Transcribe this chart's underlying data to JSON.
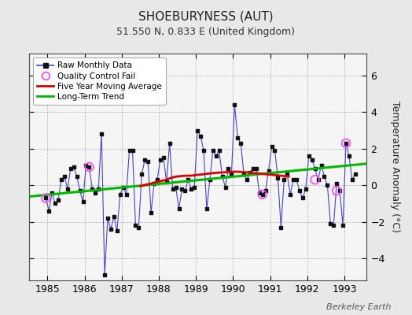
{
  "title": "SHOEBURYNESS (AUT)",
  "subtitle": "51.550 N, 0.833 E (United Kingdom)",
  "ylabel": "Temperature Anomaly (°C)",
  "footer": "Berkeley Earth",
  "bg_color": "#e8e8e8",
  "plot_bg_color": "#f5f5f5",
  "ylim": [
    -5.2,
    7.2
  ],
  "yticks": [
    -4,
    -2,
    0,
    2,
    4,
    6
  ],
  "xlim": [
    1984.5,
    1993.6
  ],
  "xticks": [
    1985,
    1986,
    1987,
    1988,
    1989,
    1990,
    1991,
    1992,
    1993
  ],
  "raw_x": [
    1984.958,
    1985.042,
    1985.125,
    1985.208,
    1985.292,
    1985.375,
    1985.458,
    1985.542,
    1985.625,
    1985.708,
    1985.792,
    1985.875,
    1985.958,
    1986.042,
    1986.125,
    1986.208,
    1986.292,
    1986.375,
    1986.458,
    1986.542,
    1986.625,
    1986.708,
    1986.792,
    1986.875,
    1986.958,
    1987.042,
    1987.125,
    1987.208,
    1987.292,
    1987.375,
    1987.458,
    1987.542,
    1987.625,
    1987.708,
    1987.792,
    1987.875,
    1987.958,
    1988.042,
    1988.125,
    1988.208,
    1988.292,
    1988.375,
    1988.458,
    1988.542,
    1988.625,
    1988.708,
    1988.792,
    1988.875,
    1988.958,
    1989.042,
    1989.125,
    1989.208,
    1989.292,
    1989.375,
    1989.458,
    1989.542,
    1989.625,
    1989.708,
    1989.792,
    1989.875,
    1989.958,
    1990.042,
    1990.125,
    1990.208,
    1990.292,
    1990.375,
    1990.458,
    1990.542,
    1990.625,
    1990.708,
    1990.792,
    1990.875,
    1990.958,
    1991.042,
    1991.125,
    1991.208,
    1991.292,
    1991.375,
    1991.458,
    1991.542,
    1991.625,
    1991.708,
    1991.792,
    1991.875,
    1991.958,
    1992.042,
    1992.125,
    1992.208,
    1992.292,
    1992.375,
    1992.458,
    1992.542,
    1992.625,
    1992.708,
    1992.792,
    1992.875,
    1992.958,
    1993.042,
    1993.125,
    1993.208,
    1993.292
  ],
  "raw_y": [
    -0.7,
    -1.4,
    -0.4,
    -1.0,
    -0.8,
    0.3,
    0.5,
    -0.2,
    0.9,
    1.0,
    0.5,
    -0.3,
    -0.9,
    1.1,
    1.0,
    -0.2,
    -0.4,
    -0.2,
    2.8,
    -4.9,
    -1.8,
    -2.4,
    -1.7,
    -2.5,
    -0.5,
    -0.1,
    -0.5,
    1.9,
    1.9,
    -2.2,
    -2.3,
    0.6,
    1.4,
    1.3,
    -1.5,
    0.1,
    0.3,
    1.4,
    1.5,
    0.2,
    2.3,
    -0.2,
    -0.1,
    -1.3,
    -0.2,
    -0.3,
    0.3,
    -0.2,
    -0.1,
    3.0,
    2.7,
    1.9,
    -1.3,
    0.3,
    1.9,
    1.6,
    1.9,
    0.5,
    -0.1,
    0.9,
    0.6,
    4.4,
    2.6,
    2.3,
    0.6,
    0.3,
    0.7,
    0.9,
    0.9,
    -0.4,
    -0.5,
    -0.3,
    0.8,
    2.1,
    1.9,
    0.4,
    -2.3,
    0.3,
    0.6,
    -0.5,
    0.3,
    0.3,
    -0.3,
    -0.7,
    -0.2,
    1.6,
    1.4,
    0.9,
    0.3,
    1.1,
    0.5,
    0.0,
    -2.1,
    -2.2,
    0.1,
    -0.3,
    -2.2,
    2.3,
    1.6,
    0.3,
    0.6
  ],
  "qc_fail_x": [
    1984.958,
    1986.125,
    1990.792,
    1992.208,
    1992.792,
    1993.042
  ],
  "qc_fail_y": [
    -0.7,
    1.0,
    -0.5,
    0.3,
    -0.3,
    2.3
  ],
  "ma_x": [
    1987.5,
    1987.6,
    1987.7,
    1987.8,
    1987.9,
    1988.0,
    1988.1,
    1988.2,
    1988.3,
    1988.4,
    1988.5,
    1988.6,
    1988.7,
    1988.8,
    1988.9,
    1989.0,
    1989.1,
    1989.2,
    1989.3,
    1989.4,
    1989.5,
    1989.6,
    1989.7,
    1989.8,
    1989.9,
    1990.0,
    1990.1,
    1990.2,
    1990.3,
    1990.4,
    1990.5,
    1990.6,
    1990.7,
    1990.8,
    1990.9,
    1991.0,
    1991.1,
    1991.2,
    1991.3,
    1991.4,
    1991.5
  ],
  "ma_y": [
    -0.05,
    0.0,
    0.05,
    0.1,
    0.15,
    0.2,
    0.25,
    0.3,
    0.38,
    0.44,
    0.48,
    0.5,
    0.52,
    0.52,
    0.53,
    0.56,
    0.58,
    0.6,
    0.63,
    0.65,
    0.67,
    0.69,
    0.7,
    0.71,
    0.72,
    0.74,
    0.74,
    0.73,
    0.72,
    0.7,
    0.68,
    0.66,
    0.64,
    0.62,
    0.6,
    0.58,
    0.56,
    0.54,
    0.52,
    0.5,
    0.48
  ],
  "trend_x": [
    1984.5,
    1993.6
  ],
  "trend_y": [
    -0.62,
    1.18
  ],
  "line_color": "#4444cc",
  "marker_color": "#111111",
  "qc_color": "#ff44ff",
  "ma_color": "#dd0000",
  "trend_color": "#00bb00",
  "grid_color": "#bbbbbb",
  "title_fontsize": 11,
  "subtitle_fontsize": 9,
  "tick_fontsize": 9,
  "ylabel_fontsize": 9
}
